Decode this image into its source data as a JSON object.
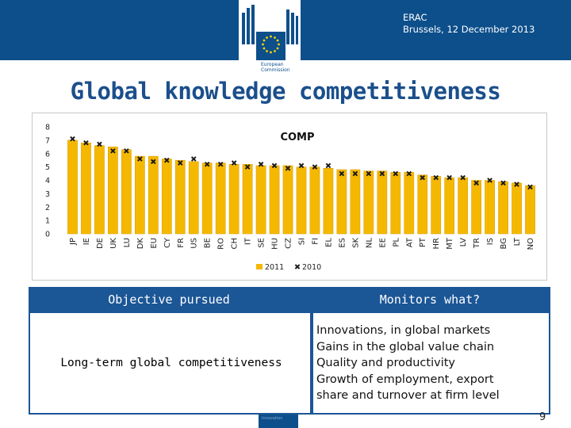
{
  "header": {
    "org_line1": "European",
    "org_line2": "Commission",
    "meta_line1": "ERAC",
    "meta_line2": "Brussels, 12 December 2013"
  },
  "slide": {
    "title": "Global knowledge competitiveness",
    "page_number": "9",
    "footer_strip_text": "Innovation"
  },
  "colors": {
    "banner": "#0d4f8b",
    "title": "#1b4f8c",
    "table_header": "#1b5696",
    "bar_2011": "#f5b800",
    "marker_2010": "#1a1a1a"
  },
  "chart_data": {
    "type": "bar",
    "title": "COMP",
    "ylim": [
      0,
      8
    ],
    "yticks": [
      "0",
      "1",
      "2",
      "3",
      "4",
      "5",
      "6",
      "7",
      "8"
    ],
    "legend_position": "bottom",
    "categories": [
      "JP",
      "IE",
      "DE",
      "UK",
      "LU",
      "DK",
      "EU",
      "CY",
      "FR",
      "US",
      "BE",
      "RO",
      "CH",
      "IT",
      "SE",
      "HU",
      "CZ",
      "SI",
      "FI",
      "EL",
      "ES",
      "SK",
      "NL",
      "EE",
      "PL",
      "AT",
      "PT",
      "HR",
      "MT",
      "LV",
      "TR",
      "IS",
      "BG",
      "LT",
      "NO"
    ],
    "series": [
      {
        "name": "2011",
        "kind": "bar",
        "values": [
          7.0,
          6.8,
          6.6,
          6.5,
          6.3,
          5.8,
          5.8,
          5.6,
          5.5,
          5.4,
          5.3,
          5.3,
          5.2,
          5.2,
          5.1,
          5.1,
          5.1,
          5.0,
          5.0,
          4.9,
          4.8,
          4.8,
          4.7,
          4.7,
          4.6,
          4.6,
          4.4,
          4.3,
          4.2,
          4.2,
          4.0,
          4.0,
          3.9,
          3.8,
          3.6
        ]
      },
      {
        "name": "2010",
        "kind": "marker",
        "values": [
          7.1,
          6.8,
          6.7,
          6.2,
          6.2,
          5.6,
          5.4,
          5.5,
          5.3,
          5.6,
          5.2,
          5.2,
          5.3,
          5.0,
          5.2,
          5.1,
          4.9,
          5.1,
          5.0,
          5.1,
          4.5,
          4.5,
          4.5,
          4.5,
          4.5,
          4.5,
          4.2,
          4.2,
          4.2,
          4.2,
          3.8,
          4.0,
          3.8,
          3.7,
          3.5
        ]
      }
    ]
  },
  "table": {
    "headers": [
      "Objective pursued",
      "Monitors what?"
    ],
    "objective": "Long-term global competitiveness",
    "monitors": [
      "Innovations, in global markets",
      "Gains in the global value chain",
      "Quality and productivity",
      "Growth of employment, export",
      "share and turnover at firm level"
    ]
  }
}
